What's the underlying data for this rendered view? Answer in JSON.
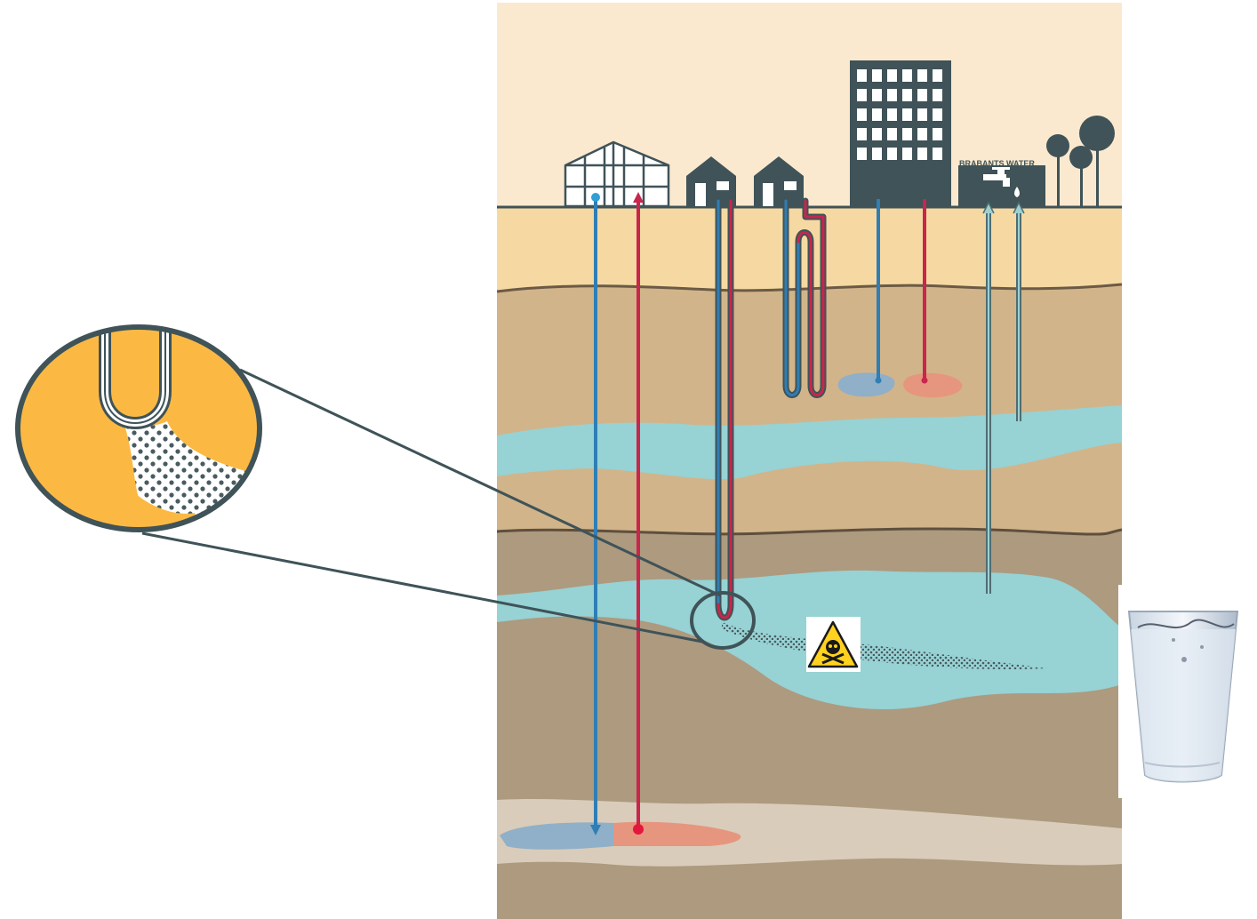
{
  "diagram": {
    "building_sign": "BRABANTS WATER",
    "colors": {
      "sky": "#fbe9cf",
      "topsoil": "#f6d9a2",
      "clay": "#d2b48a",
      "deep_soil": "#ad9a7f",
      "aquifer": "#97d2d4",
      "bottom_layer": "#d9ccba",
      "cold_pipe": "#2f7eb5",
      "warm_pipe": "#c8264b",
      "building": "#3f5358",
      "zoom_fill": "#fbb944",
      "contamination_dots": "#4a5b60"
    },
    "icons": [
      "greenhouse-icon",
      "house-icon",
      "office-building-icon",
      "water-company-building-icon",
      "water-tap-icon",
      "tree-icon",
      "hazard-skull-icon",
      "water-glass-icon",
      "magnifier-circle-icon"
    ]
  }
}
